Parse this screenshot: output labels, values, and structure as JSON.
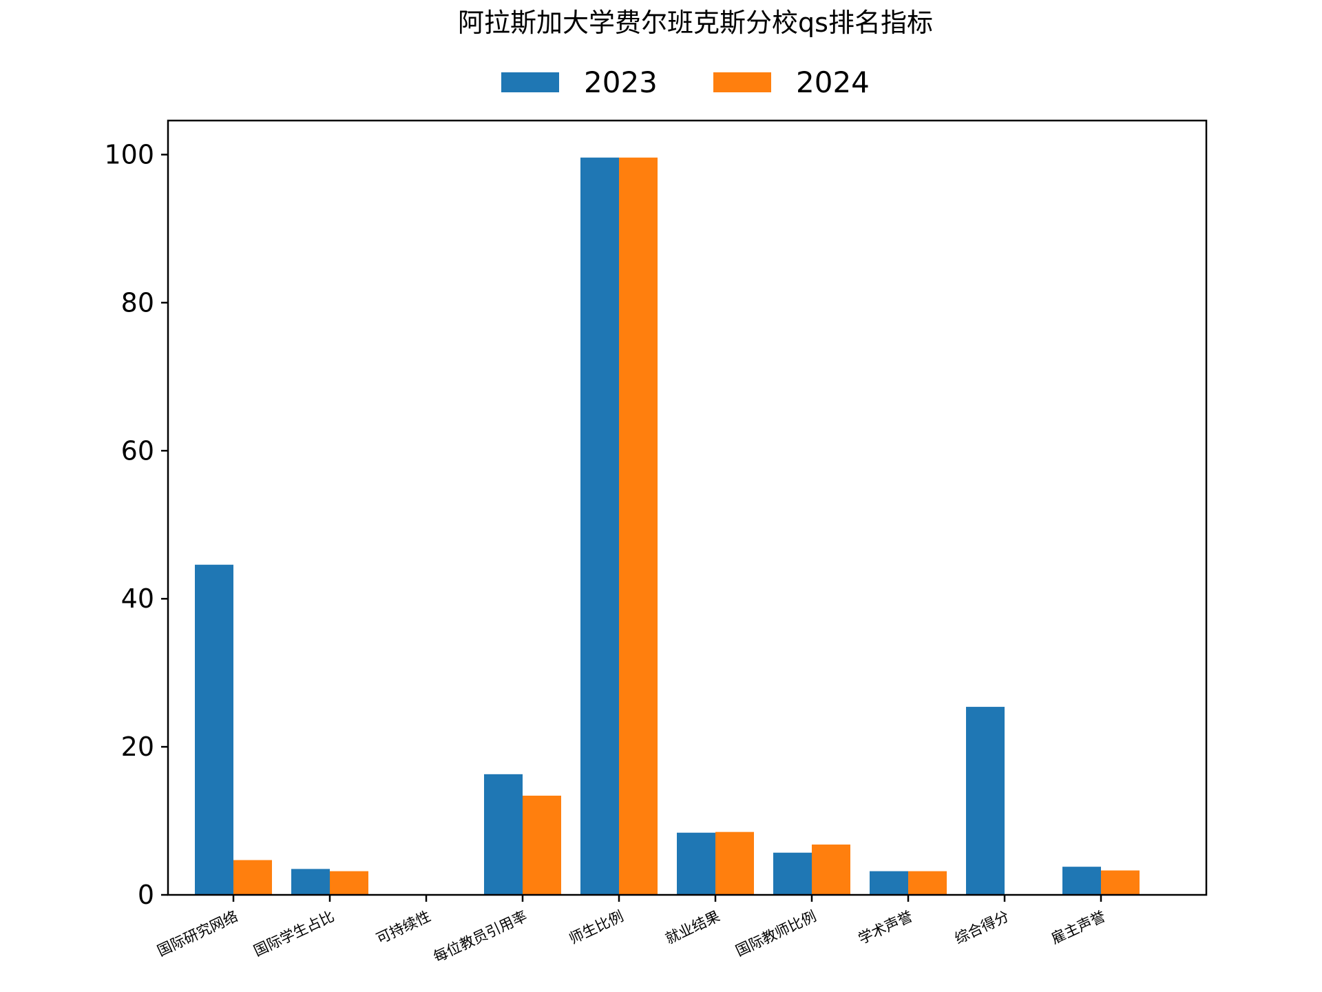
{
  "chart_data": {
    "type": "bar",
    "title": "阿拉斯加大学费尔班克斯分校qs排名指标",
    "xlabel": "",
    "ylabel": "",
    "categories": [
      "国际研究网络",
      "国际学生占比",
      "可持续性",
      "每位教员引用率",
      "师生比例",
      "就业结果",
      "国际教师比例",
      "学术声誉",
      "综合得分",
      "雇主声誉"
    ],
    "series": [
      {
        "name": "2023",
        "color": "#1f77b4",
        "values": [
          44.6,
          3.5,
          0,
          16.3,
          99.6,
          8.4,
          5.7,
          3.2,
          25.4,
          3.8
        ]
      },
      {
        "name": "2024",
        "color": "#ff7f0e",
        "values": [
          4.7,
          3.2,
          0,
          13.4,
          99.6,
          8.5,
          6.8,
          3.2,
          0,
          3.3
        ]
      }
    ],
    "ylim": [
      0,
      104.6
    ],
    "yticks": [
      0,
      20,
      40,
      60,
      80,
      100
    ],
    "legend_position": "top-center",
    "grid": false
  }
}
